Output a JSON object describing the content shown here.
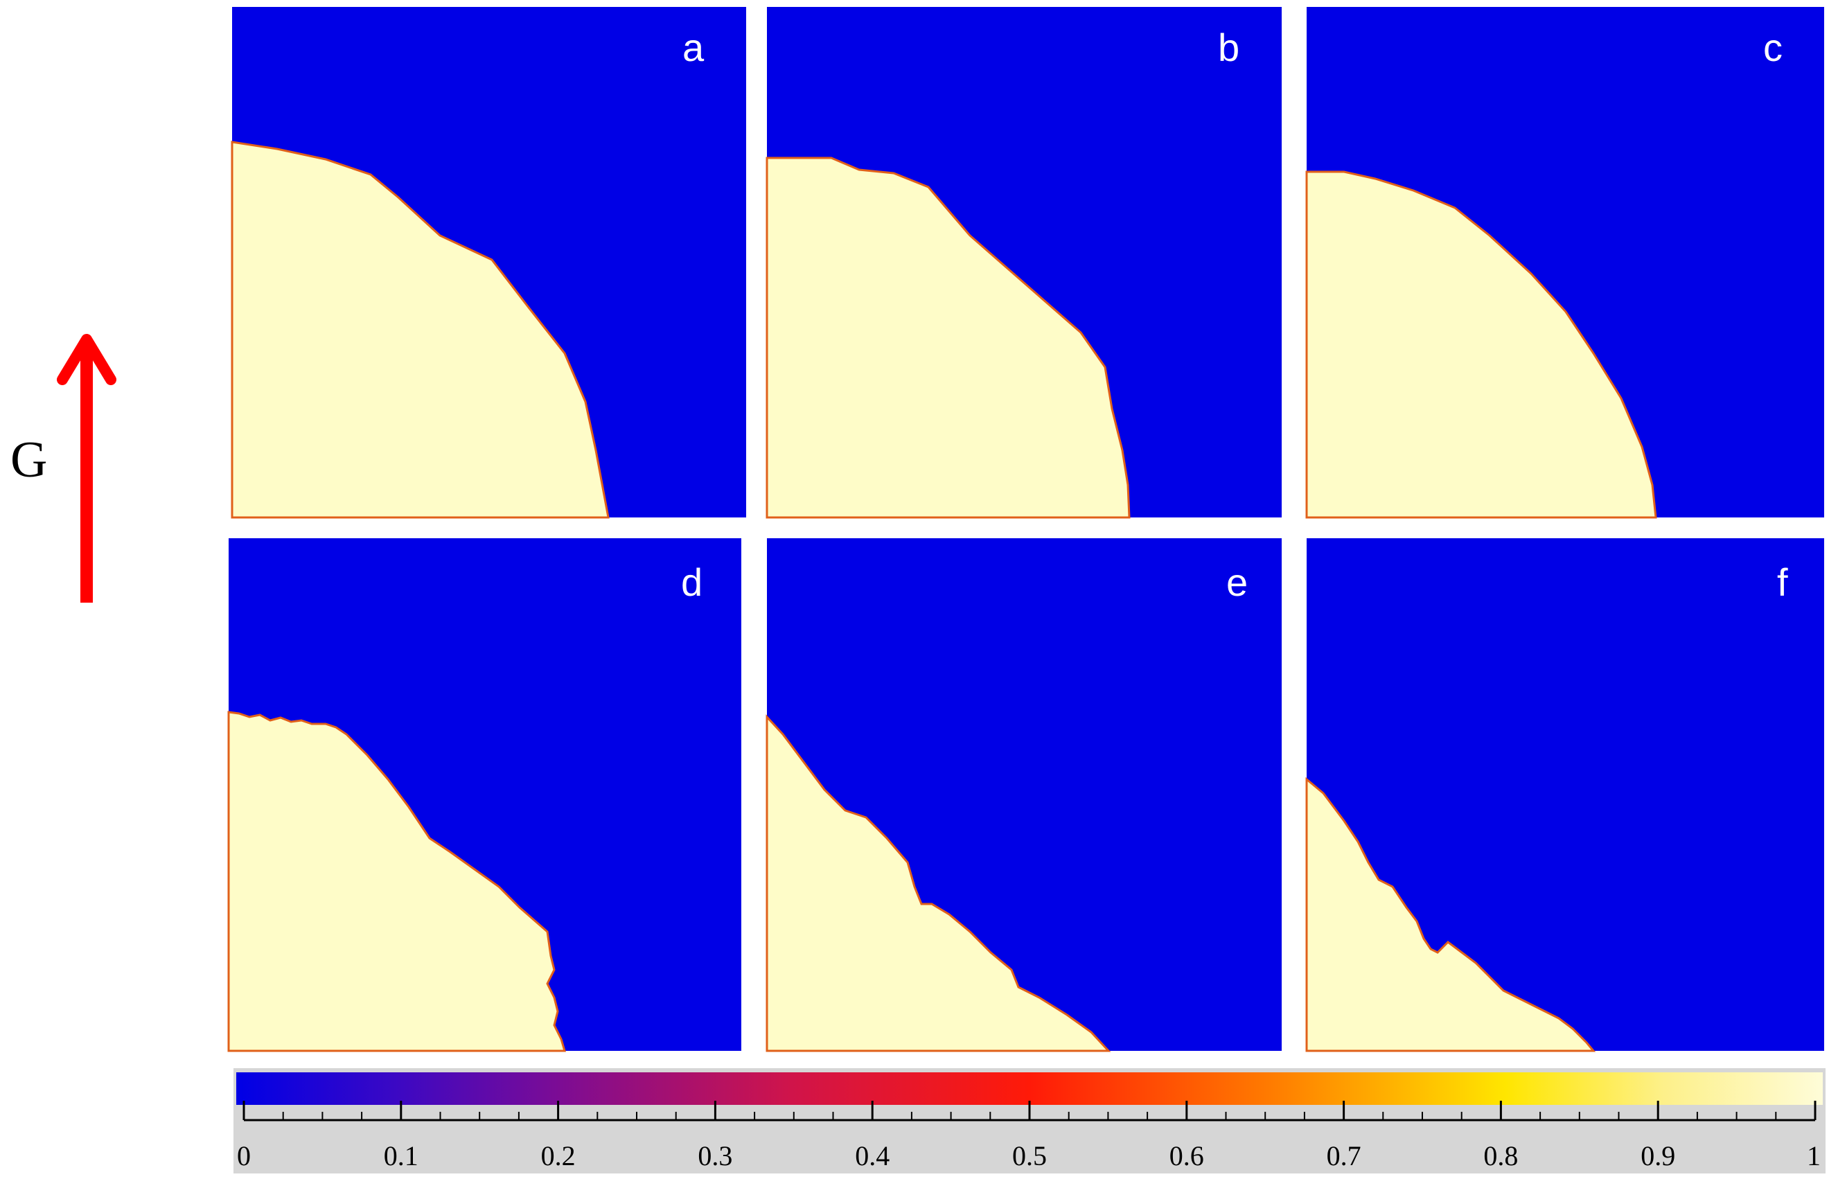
{
  "gravity": {
    "label": "G",
    "arrow_color": "#ff0000"
  },
  "colors": {
    "fluid_blue": "#0000e6",
    "melt_cream": "#fefcc8",
    "interface": "#e0601a",
    "colorbar_bg": "#d6d6d6"
  },
  "panels": [
    {
      "label": "a"
    },
    {
      "label": "b"
    },
    {
      "label": "c"
    },
    {
      "label": "d"
    },
    {
      "label": "e"
    },
    {
      "label": "f"
    }
  ],
  "colorbar": {
    "min": 0,
    "max": 1,
    "ticks": [
      "0",
      "0.1",
      "0.2",
      "0.3",
      "0.4",
      "0.5",
      "0.6",
      "0.7",
      "0.8",
      "0.9",
      "1"
    ],
    "gradient_stops": [
      {
        "value": 0.0,
        "color": "#0000e6"
      },
      {
        "value": 0.1,
        "color": "#3b08c4"
      },
      {
        "value": 0.2,
        "color": "#7a0c96"
      },
      {
        "value": 0.35,
        "color": "#d0144a"
      },
      {
        "value": 0.5,
        "color": "#ff1a08"
      },
      {
        "value": 0.65,
        "color": "#ff7a00"
      },
      {
        "value": 0.8,
        "color": "#ffe600"
      },
      {
        "value": 0.9,
        "color": "#fdf08a"
      },
      {
        "value": 1.0,
        "color": "#fefcd8"
      }
    ]
  }
}
